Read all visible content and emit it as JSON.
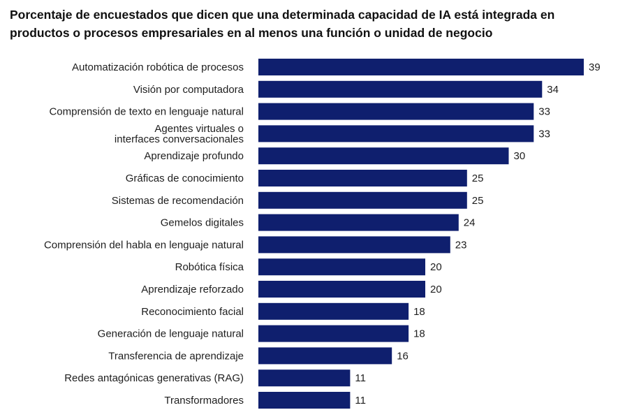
{
  "chart_data": {
    "type": "bar",
    "orientation": "horizontal",
    "title": "Porcentaje de encuestados que dicen que una determinada capacidad de IA está integrada en productos o procesos empresariales en al menos una función o unidad de negocio",
    "xlabel": "",
    "ylabel": "",
    "grid": false,
    "legend": "none",
    "bar_color": "#0f1f6e",
    "categories": [
      "Automatización robótica de procesos",
      "Visión por computadora",
      "Comprensión de texto en lenguaje natural",
      "Agentes virtuales o\ninterfaces conversacionales",
      "Aprendizaje profundo",
      "Gráficas de conocimiento",
      "Sistemas de recomendación",
      "Gemelos digitales",
      "Comprensión del habla en lenguaje natural",
      "Robótica física",
      "Aprendizaje reforzado",
      "Reconocimiento facial",
      "Generación de lenguaje natural",
      "Transferencia de aprendizaje",
      "Redes antagónicas generativas (RAG)",
      "Transformadores"
    ],
    "values": [
      39,
      34,
      33,
      33,
      30,
      25,
      25,
      24,
      23,
      20,
      20,
      18,
      18,
      16,
      11,
      11
    ]
  }
}
